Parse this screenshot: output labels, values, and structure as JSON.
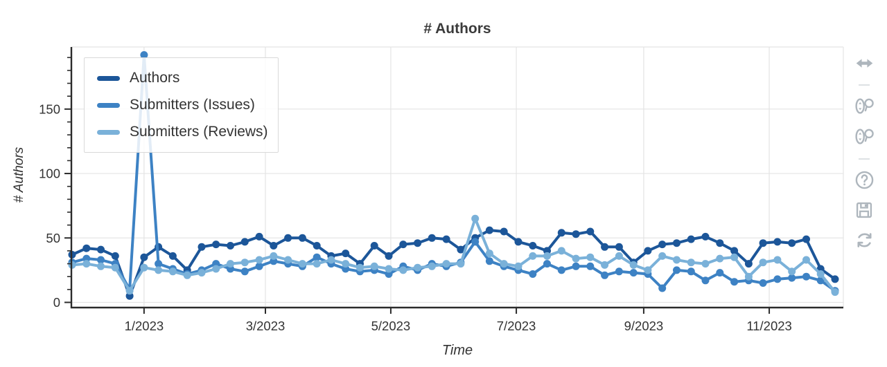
{
  "chart": {
    "title": "# Authors",
    "xlabel": "Time",
    "ylabel": "# Authors"
  },
  "legend": {
    "position": "top-left"
  },
  "toolbar": {
    "icon_color": "#aeb6bd",
    "buttons": [
      {
        "id": "pan-horizontal",
        "icon": "arrows-horizontal-icon"
      },
      {
        "id": "divider-1",
        "icon": "divider"
      },
      {
        "id": "wheel-zoom-x",
        "icon": "mouse-wheel-zoom-icon"
      },
      {
        "id": "wheel-zoom-y",
        "icon": "mouse-wheel-zoom-icon"
      },
      {
        "id": "divider-2",
        "icon": "divider"
      },
      {
        "id": "help",
        "icon": "help-icon"
      },
      {
        "id": "save",
        "icon": "save-icon"
      },
      {
        "id": "refresh",
        "icon": "refresh-icon"
      }
    ]
  },
  "chart_data": {
    "type": "line",
    "title": "# Authors",
    "xlabel": "Time",
    "ylabel": "# Authors",
    "x_unit": "weekly data points, late Nov 2022 through mid Dec 2023",
    "x_tick_labels": [
      "1/2023",
      "3/2023",
      "5/2023",
      "7/2023",
      "9/2023",
      "11/2023"
    ],
    "x_tick_week_positions": [
      5,
      13.43,
      22.14,
      30.86,
      39.71,
      48.43
    ],
    "y_ticks": [
      0,
      50,
      100,
      150
    ],
    "y_minor_step": 10,
    "ylim": [
      -4,
      198
    ],
    "grid": true,
    "legend_position": "top-left",
    "colors": {
      "grid": "#e4e4e4",
      "axis": "#2b2b2b",
      "text": "#333333"
    },
    "series": [
      {
        "name": "Authors",
        "color": "#1c5699",
        "values": [
          37,
          42,
          41,
          36,
          5,
          35,
          43,
          36,
          25,
          43,
          45,
          44,
          47,
          51,
          44,
          50,
          50,
          44,
          36,
          38,
          30,
          44,
          36,
          45,
          46,
          50,
          49,
          41,
          50,
          56,
          55,
          47,
          44,
          40,
          54,
          53,
          55,
          43,
          43,
          31,
          40,
          45,
          46,
          49,
          51,
          46,
          40,
          30,
          46,
          47,
          46,
          49,
          26,
          18
        ]
      },
      {
        "name": "Submitters (Issues)",
        "color": "#3d82c4",
        "values": [
          31,
          34,
          33,
          30,
          10,
          192,
          30,
          26,
          22,
          25,
          30,
          26,
          24,
          28,
          32,
          30,
          28,
          35,
          30,
          26,
          24,
          25,
          22,
          28,
          25,
          30,
          28,
          31,
          47,
          32,
          28,
          25,
          22,
          30,
          25,
          28,
          28,
          21,
          24,
          23,
          22,
          11,
          25,
          24,
          17,
          23,
          16,
          17,
          15,
          18,
          19,
          20,
          17,
          9
        ]
      },
      {
        "name": "Submitters (Reviews)",
        "color": "#7ab1d9",
        "values": [
          29,
          30,
          28,
          27,
          9,
          27,
          25,
          24,
          21,
          23,
          26,
          30,
          31,
          33,
          36,
          33,
          30,
          30,
          33,
          30,
          27,
          28,
          26,
          25,
          27,
          28,
          30,
          30,
          65,
          38,
          30,
          28,
          36,
          36,
          40,
          34,
          35,
          29,
          36,
          29,
          25,
          36,
          33,
          31,
          30,
          34,
          35,
          20,
          31,
          33,
          24,
          33,
          22,
          8
        ]
      }
    ]
  }
}
